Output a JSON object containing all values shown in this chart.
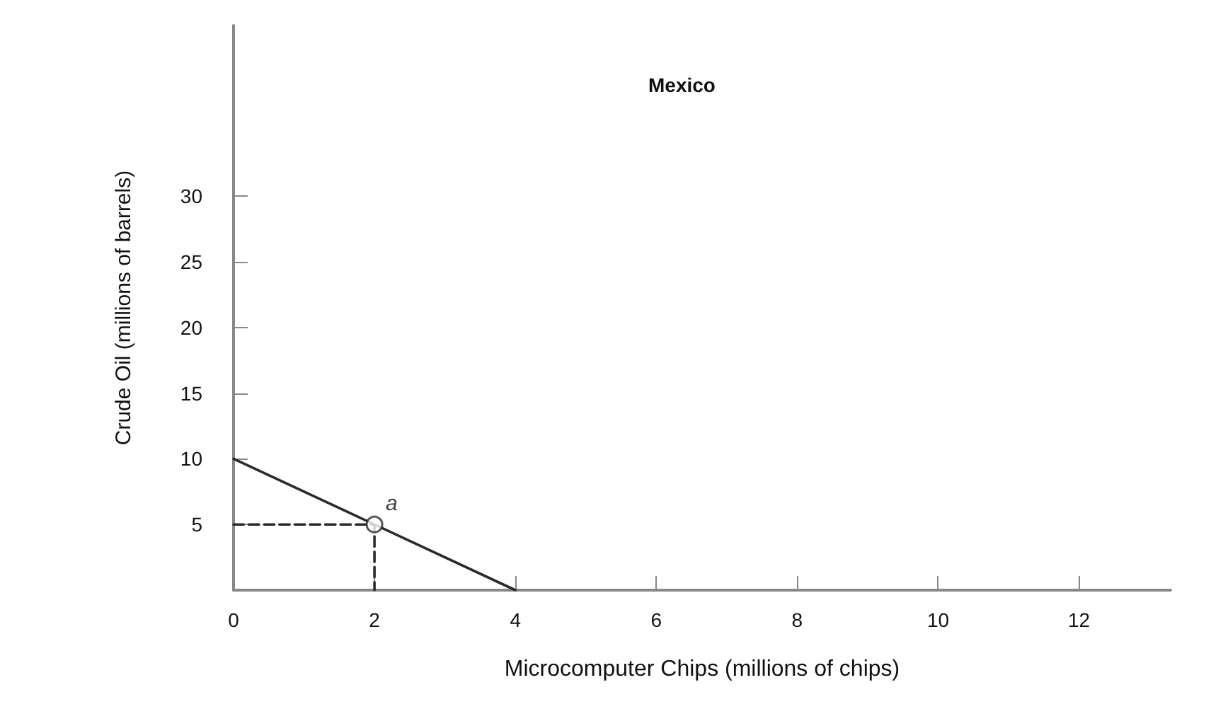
{
  "chart_data": {
    "type": "line",
    "annotations": [
      "Mexico",
      {
        "text": "a",
        "x": 2,
        "y": 5
      }
    ],
    "xlabel": "Microcomputer Chips (millions of chips)",
    "ylabel": "Crude Oil (millions of barrels)",
    "xlim": [
      0,
      13.3
    ],
    "ylim": [
      0,
      43
    ],
    "xticks": [
      0,
      2,
      4,
      6,
      8,
      10,
      12
    ],
    "yticks": [
      5,
      10,
      15,
      20,
      25,
      30
    ],
    "grid": false,
    "series": [
      {
        "x": [
          0,
          4
        ],
        "values": [
          10,
          0
        ],
        "color": "#2b2b2b",
        "marker": "none",
        "line_style": "solid"
      },
      {
        "x": [
          0,
          2,
          2
        ],
        "values": [
          5,
          5,
          0
        ],
        "color": "#2b2b2b",
        "marker": "none",
        "line_style": "dashed"
      },
      {
        "type": "scatter",
        "x": [
          2
        ],
        "values": [
          5
        ],
        "color": "#2b2b2b",
        "marker": "circle"
      }
    ]
  }
}
